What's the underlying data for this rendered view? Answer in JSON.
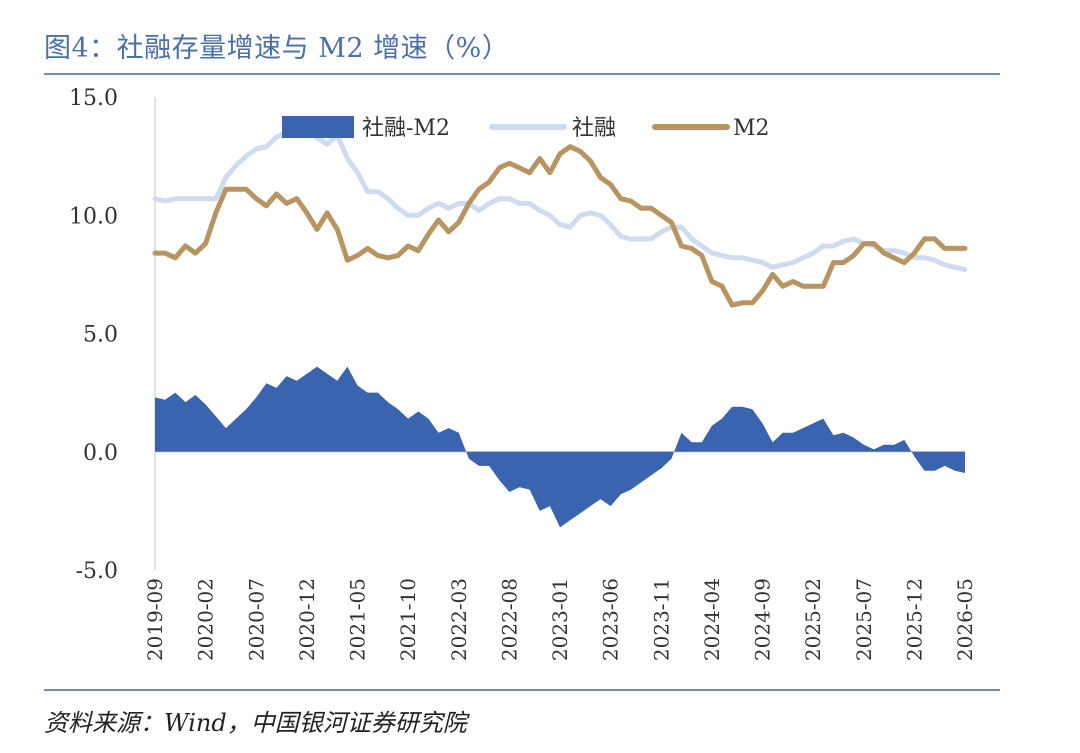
{
  "title": "图4：社融存量增速与 M2 增速（%）",
  "source": "资料来源：Wind，中国银河证券研究院",
  "colors": {
    "diff": "#3a63b0",
    "sf": "#cfdcf0",
    "m2": "#b89460",
    "axis": "#d9d9d9",
    "text": "#333333"
  },
  "chart_data": {
    "type": "line",
    "ylim": [
      -5,
      15
    ],
    "yticks": [
      "15.0",
      "10.0",
      "5.0",
      "0.0",
      "-5.0"
    ],
    "x_tick_labels": [
      "2019-09",
      "2020-02",
      "2020-07",
      "2020-12",
      "2021-05",
      "2021-10",
      "2022-03",
      "2022-08",
      "2023-01",
      "2023-06",
      "2023-11",
      "2024-04",
      "2024-09",
      "2025-02",
      "2025-07",
      "2025-12",
      "2026-05"
    ],
    "legend_position": "top",
    "series": [
      {
        "name": "社融-M2",
        "style": "area",
        "values": [
          2.3,
          2.2,
          2.5,
          2.1,
          2.4,
          2.0,
          1.5,
          1.0,
          1.4,
          1.8,
          2.3,
          2.9,
          2.7,
          3.2,
          3.0,
          3.3,
          3.6,
          3.3,
          3.0,
          3.6,
          2.8,
          2.5,
          2.5,
          2.1,
          1.8,
          1.4,
          1.7,
          1.4,
          0.8,
          1.0,
          0.8,
          -0.3,
          -0.6,
          -0.6,
          -1.2,
          -1.7,
          -1.5,
          -1.6,
          -2.5,
          -2.3,
          -3.2,
          -2.9,
          -2.6,
          -2.3,
          -2.0,
          -2.3,
          -1.8,
          -1.6,
          -1.3,
          -1.0,
          -0.7,
          -0.3,
          0.8,
          0.4,
          0.4,
          1.1,
          1.4,
          1.9,
          1.9,
          1.8,
          1.2,
          0.4,
          0.8,
          0.8,
          1.0,
          1.2,
          1.4,
          0.7,
          0.8,
          0.6,
          0.3,
          0.1,
          0.3,
          0.3,
          0.5,
          -0.2,
          -0.8,
          -0.8,
          -0.6,
          -0.8,
          -0.9
        ]
      },
      {
        "name": "社融",
        "style": "line",
        "values": [
          10.7,
          10.6,
          10.7,
          10.7,
          10.7,
          10.7,
          10.7,
          11.6,
          12.1,
          12.5,
          12.8,
          12.9,
          13.3,
          13.5,
          13.6,
          13.5,
          13.3,
          13.0,
          13.4,
          12.4,
          11.8,
          11.0,
          11.0,
          10.7,
          10.3,
          10.0,
          10.0,
          10.3,
          10.5,
          10.3,
          10.5,
          10.5,
          10.2,
          10.5,
          10.7,
          10.7,
          10.5,
          10.5,
          10.2,
          10.0,
          9.6,
          9.5,
          10.0,
          10.1,
          10.0,
          9.6,
          9.1,
          9.0,
          9.0,
          9.0,
          9.3,
          9.5,
          9.5,
          9.0,
          8.7,
          8.4,
          8.3,
          8.2,
          8.2,
          8.1,
          8.0,
          7.8,
          7.9,
          8.0,
          8.2,
          8.4,
          8.7,
          8.7,
          8.9,
          9.0,
          8.8,
          8.7,
          8.5,
          8.5,
          8.4,
          8.2,
          8.2,
          8.1,
          7.9,
          7.8,
          7.7
        ]
      },
      {
        "name": "M2",
        "style": "line",
        "values": [
          8.4,
          8.4,
          8.2,
          8.7,
          8.4,
          8.8,
          10.1,
          11.1,
          11.1,
          11.1,
          10.7,
          10.4,
          10.9,
          10.5,
          10.7,
          10.1,
          9.4,
          10.1,
          9.4,
          8.1,
          8.3,
          8.6,
          8.3,
          8.2,
          8.3,
          8.7,
          8.5,
          9.2,
          9.8,
          9.3,
          9.7,
          10.5,
          11.1,
          11.4,
          12.0,
          12.2,
          12.0,
          11.8,
          12.4,
          11.8,
          12.6,
          12.9,
          12.7,
          12.3,
          11.6,
          11.3,
          10.7,
          10.6,
          10.3,
          10.3,
          10.0,
          9.7,
          8.7,
          8.6,
          8.3,
          7.2,
          7.0,
          6.2,
          6.3,
          6.3,
          6.8,
          7.5,
          7.0,
          7.2,
          7.0,
          7.0,
          7.0,
          8.0,
          8.0,
          8.3,
          8.8,
          8.8,
          8.4,
          8.2,
          8.0,
          8.4,
          9.0,
          9.0,
          8.6,
          8.6,
          8.6
        ]
      }
    ]
  }
}
